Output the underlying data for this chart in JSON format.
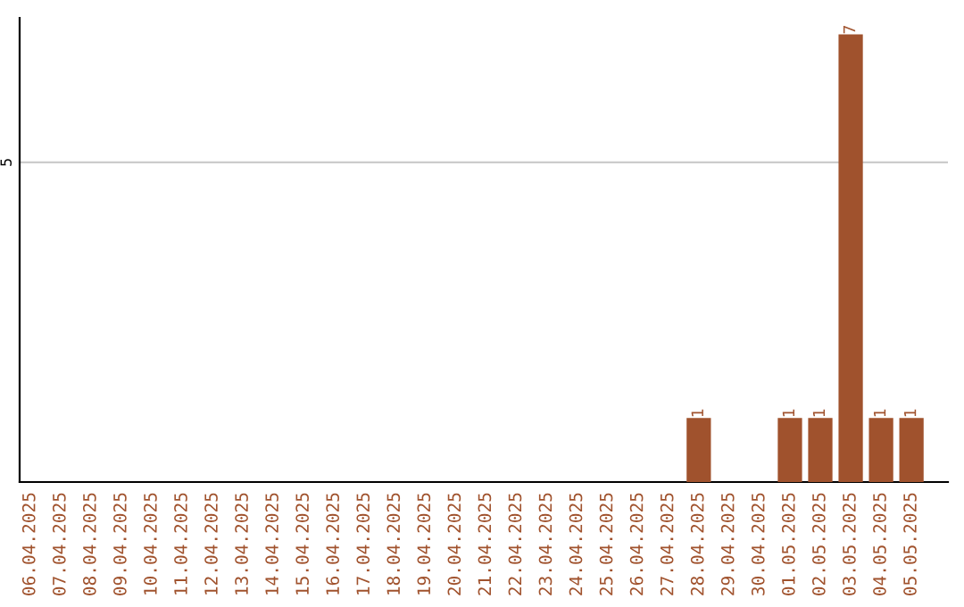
{
  "chart_data": {
    "type": "bar",
    "categories": [
      "06.04.2025",
      "07.04.2025",
      "08.04.2025",
      "09.04.2025",
      "10.04.2025",
      "11.04.2025",
      "12.04.2025",
      "13.04.2025",
      "14.04.2025",
      "15.04.2025",
      "16.04.2025",
      "17.04.2025",
      "18.04.2025",
      "19.04.2025",
      "20.04.2025",
      "21.04.2025",
      "22.04.2025",
      "23.04.2025",
      "24.04.2025",
      "25.04.2025",
      "26.04.2025",
      "27.04.2025",
      "28.04.2025",
      "29.04.2025",
      "30.04.2025",
      "01.05.2025",
      "02.05.2025",
      "03.05.2025",
      "04.05.2025",
      "05.05.2025"
    ],
    "values": [
      null,
      null,
      null,
      null,
      null,
      null,
      null,
      null,
      null,
      null,
      null,
      null,
      null,
      null,
      null,
      null,
      null,
      null,
      null,
      null,
      null,
      null,
      1,
      null,
      null,
      1,
      1,
      7,
      1,
      1
    ],
    "value_labels": [
      null,
      null,
      null,
      null,
      null,
      null,
      null,
      null,
      null,
      null,
      null,
      null,
      null,
      null,
      null,
      null,
      null,
      null,
      null,
      null,
      null,
      null,
      "1",
      null,
      null,
      "1",
      "1",
      "7",
      "1",
      "1"
    ],
    "color": "#a0522d",
    "ref_lines": [
      {
        "axis": "y",
        "value": 5,
        "label": "5",
        "color": "#cccccc"
      }
    ]
  }
}
